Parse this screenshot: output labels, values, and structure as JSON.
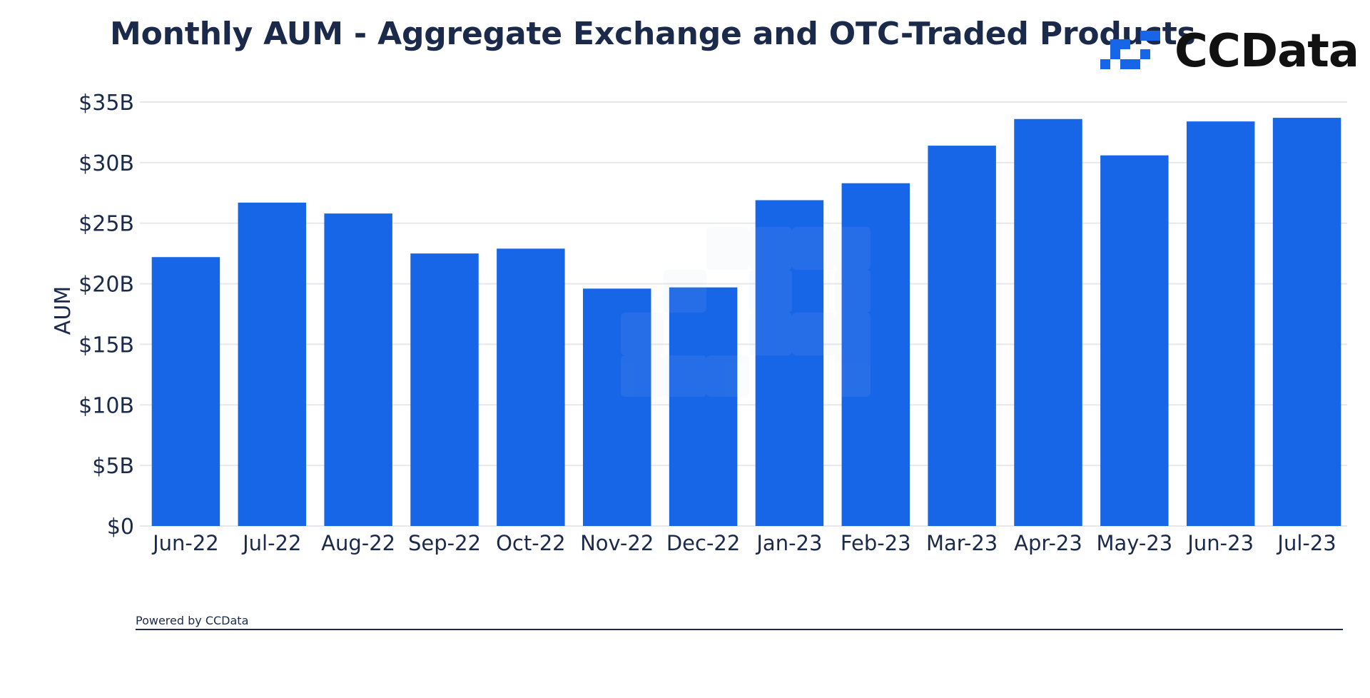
{
  "colors": {
    "bar": "#1866E8",
    "grid": "#E6E8EC",
    "text": "#1b2a4a",
    "logo_blue": "#1866E8"
  },
  "header": {
    "title": "Monthly AUM - Aggregate Exchange and OTC-Traded Products",
    "logo_text": "CCData",
    "logo_icon": "ccdata-logo-icon"
  },
  "footer": {
    "powered_by": "Powered by CCData"
  },
  "chart_data": {
    "type": "bar",
    "title": "Monthly AUM - Aggregate Exchange and OTC-Traded Products",
    "xlabel": "",
    "ylabel": "AUM",
    "categories": [
      "Jun-22",
      "Jul-22",
      "Aug-22",
      "Sep-22",
      "Oct-22",
      "Nov-22",
      "Dec-22",
      "Jan-23",
      "Feb-23",
      "Mar-23",
      "Apr-23",
      "May-23",
      "Jun-23",
      "Jul-23"
    ],
    "values": [
      22.2,
      26.7,
      25.8,
      22.5,
      22.9,
      19.6,
      19.7,
      26.9,
      28.3,
      31.4,
      33.6,
      30.6,
      33.4,
      33.7
    ],
    "value_unit": "billion USD",
    "ylim": [
      0,
      35
    ],
    "yticks": [
      0,
      5,
      10,
      15,
      20,
      25,
      30,
      35
    ],
    "ytick_labels": [
      "$0",
      "$5B",
      "$10B",
      "$15B",
      "$20B",
      "$25B",
      "$30B",
      "$35B"
    ],
    "grid": true,
    "legend": "none"
  }
}
